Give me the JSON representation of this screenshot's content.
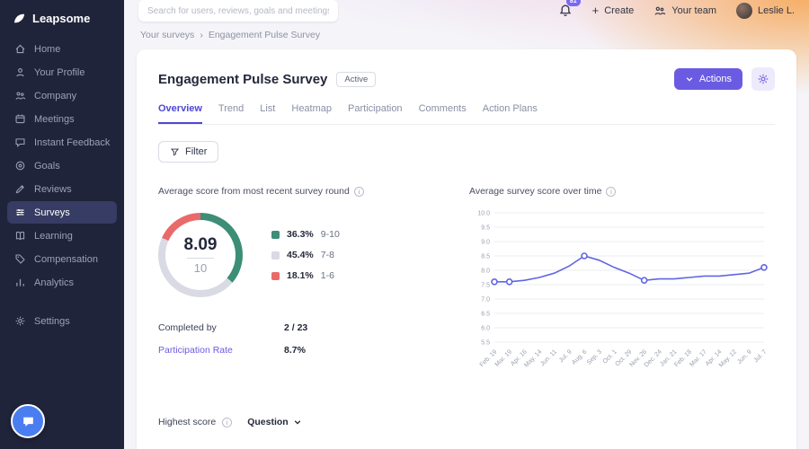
{
  "brand": {
    "name": "Leapsome"
  },
  "sidebar": {
    "items": [
      {
        "label": "Home"
      },
      {
        "label": "Your Profile"
      },
      {
        "label": "Company"
      },
      {
        "label": "Meetings"
      },
      {
        "label": "Instant Feedback"
      },
      {
        "label": "Goals"
      },
      {
        "label": "Reviews"
      },
      {
        "label": "Surveys"
      },
      {
        "label": "Learning"
      },
      {
        "label": "Compensation"
      },
      {
        "label": "Analytics"
      }
    ],
    "active_item": "Surveys",
    "settings_label": "Settings"
  },
  "topbar": {
    "search_placeholder": "Search for users, reviews, goals and meetings",
    "notification_count": "81",
    "create_label": "Create",
    "team_label": "Your team",
    "user_name": "Leslie L."
  },
  "breadcrumb": {
    "parent": "Your surveys",
    "separator": "›",
    "current": "Engagement Pulse Survey"
  },
  "survey": {
    "title": "Engagement Pulse Survey",
    "status_label": "Active",
    "actions_label": "Actions",
    "tabs": [
      "Overview",
      "Trend",
      "List",
      "Heatmap",
      "Participation",
      "Comments",
      "Action Plans"
    ],
    "active_tab": "Overview",
    "filter_label": "Filter",
    "recent_round": {
      "heading": "Average score from most recent survey round",
      "score": "8.09",
      "out_of": "10",
      "legend": [
        {
          "pct": "36.3%",
          "range": "9-10",
          "color": "#3c8e76"
        },
        {
          "pct": "45.4%",
          "range": "7-8",
          "color": "#d9dae3"
        },
        {
          "pct": "18.1%",
          "range": "1-6",
          "color": "#e96a6a"
        }
      ],
      "completed_label": "Completed by",
      "completed_value": "2 / 23",
      "participation_label": "Participation Rate",
      "participation_value": "8.7%"
    },
    "footer": {
      "highest_label": "Highest score",
      "question_label": "Question"
    }
  },
  "chart_data": {
    "type": "line",
    "title": "Average survey score over time",
    "x": [
      "Feb. 19",
      "Mar. 19",
      "Apr. 16",
      "May. 14",
      "Jun. 11",
      "Jul. 9",
      "Aug. 6",
      "Sep. 3",
      "Oct. 1",
      "Oct. 29",
      "Nov. 26",
      "Dec. 24",
      "Jan. 21",
      "Feb. 18",
      "Mar. 17",
      "Apr. 14",
      "May. 12",
      "Jun. 9",
      "Jul. 7"
    ],
    "series": [
      {
        "name": "Average survey score",
        "color": "#6165e4",
        "values": [
          7.6,
          7.6,
          7.65,
          7.75,
          7.9,
          8.15,
          8.5,
          8.35,
          8.1,
          7.9,
          7.65,
          7.7,
          7.7,
          7.75,
          7.8,
          7.8,
          7.85,
          7.9,
          8.1
        ]
      }
    ],
    "marker_indices": [
      0,
      1,
      6,
      10,
      18
    ],
    "ylim": [
      5.5,
      10.0
    ],
    "yticks": [
      10.0,
      9.5,
      9.0,
      8.5,
      8.0,
      7.5,
      7.0,
      6.5,
      6.0,
      5.5
    ],
    "grid": true,
    "legend_position": "none"
  }
}
